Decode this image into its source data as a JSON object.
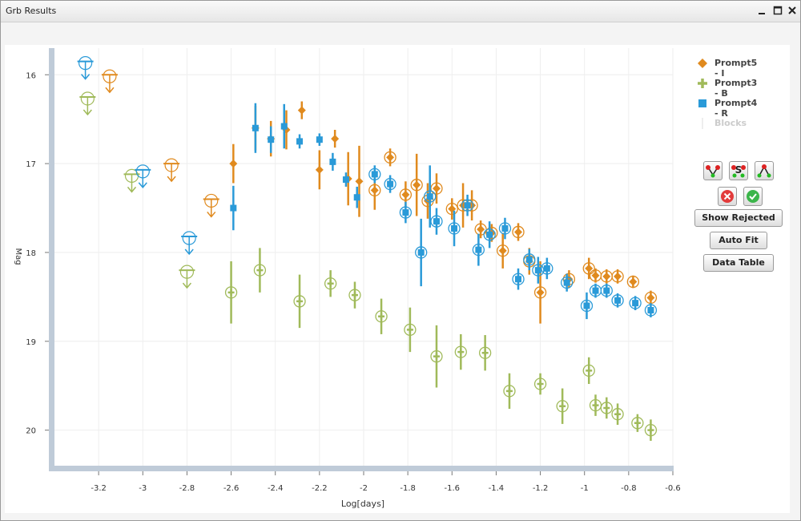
{
  "window": {
    "title": "Grb Results"
  },
  "legend": [
    {
      "label": "Prompt5 - I",
      "color": "#e08a1e",
      "marker": "diamond"
    },
    {
      "label": "Prompt3 - B",
      "color": "#a0ba5a",
      "marker": "plus"
    },
    {
      "label": "Prompt4 - R",
      "color": "#2a9ad8",
      "marker": "square"
    },
    {
      "label": "Blocks",
      "color": "#dddddd",
      "marker": "line",
      "disabled": true
    }
  ],
  "buttons": {
    "show_rejected": "Show Rejected",
    "auto_fit": "Auto Fit",
    "data_table": "Data Table"
  },
  "icons": [
    "tool-fit-icon",
    "tool-s-icon",
    "tool-peak-icon",
    "reject-icon",
    "accept-icon"
  ],
  "chart_data": {
    "type": "scatter",
    "xlabel": "Log[days]",
    "ylabel": "Mag",
    "xlim": [
      -3.4,
      -0.6
    ],
    "ylim": [
      20.4,
      15.7
    ],
    "y_inverted": true,
    "grid": true,
    "legend_position": "right",
    "x_ticks": [
      "-3.2",
      "-3",
      "-2.8",
      "-2.6",
      "-2.4",
      "-2.2",
      "-2",
      "-1.8",
      "-1.6",
      "-1.4",
      "-1.2",
      "-1",
      "-0.8",
      "-0.6"
    ],
    "y_ticks": [
      "16",
      "17",
      "18",
      "19",
      "20"
    ],
    "series": [
      {
        "name": "Prompt5 - I",
        "color": "#e08a1e",
        "marker": "diamond",
        "upper_limits": [
          [
            -3.15,
            16.0
          ],
          [
            -2.87,
            17.0
          ],
          [
            -2.69,
            17.4
          ]
        ],
        "points": [
          {
            "x": -2.59,
            "y": 17.0,
            "err": 0.22
          },
          {
            "x": -2.49,
            "y": 16.6,
            "err": 0.25
          },
          {
            "x": -2.42,
            "y": 16.72,
            "err": 0.2
          },
          {
            "x": -2.35,
            "y": 16.62,
            "err": 0.22
          },
          {
            "x": -2.28,
            "y": 16.4,
            "err": 0.1
          },
          {
            "x": -2.2,
            "y": 17.07,
            "err": 0.22
          },
          {
            "x": -2.13,
            "y": 16.72,
            "err": 0.1
          },
          {
            "x": -2.07,
            "y": 17.17,
            "err": 0.3
          },
          {
            "x": -2.02,
            "y": 17.2,
            "err": 0.4
          },
          {
            "x": -1.95,
            "y": 17.3,
            "err": 0.22,
            "c": true
          },
          {
            "x": -1.88,
            "y": 16.93,
            "err": 0.1,
            "c": true
          },
          {
            "x": -1.81,
            "y": 17.35,
            "err": 0.15,
            "c": true
          },
          {
            "x": -1.76,
            "y": 17.24,
            "err": 0.35,
            "c": true
          },
          {
            "x": -1.71,
            "y": 17.42,
            "err": 0.2,
            "c": true
          },
          {
            "x": -1.67,
            "y": 17.28,
            "err": 0.17,
            "c": true
          },
          {
            "x": -1.6,
            "y": 17.51,
            "err": 0.12,
            "c": true
          },
          {
            "x": -1.55,
            "y": 17.47,
            "err": 0.25,
            "c": true
          },
          {
            "x": -1.51,
            "y": 17.47,
            "err": 0.17,
            "c": true
          },
          {
            "x": -1.47,
            "y": 17.74,
            "err": 0.1,
            "c": true
          },
          {
            "x": -1.42,
            "y": 17.78,
            "err": 0.1,
            "c": true
          },
          {
            "x": -1.37,
            "y": 17.98,
            "err": 0.2,
            "c": true
          },
          {
            "x": -1.3,
            "y": 17.77,
            "err": 0.1,
            "c": true
          },
          {
            "x": -1.25,
            "y": 18.1,
            "err": 0.15,
            "c": true
          },
          {
            "x": -1.2,
            "y": 18.45,
            "err": 0.35,
            "c": true
          },
          {
            "x": -1.07,
            "y": 18.3,
            "err": 0.1,
            "c": true
          },
          {
            "x": -0.98,
            "y": 18.18,
            "err": 0.12,
            "c": true
          },
          {
            "x": -0.95,
            "y": 18.26,
            "err": 0.08,
            "c": true
          },
          {
            "x": -0.9,
            "y": 18.27,
            "err": 0.08,
            "c": true
          },
          {
            "x": -0.85,
            "y": 18.27,
            "err": 0.08,
            "c": true
          },
          {
            "x": -0.78,
            "y": 18.33,
            "err": 0.07,
            "c": true
          },
          {
            "x": -0.7,
            "y": 18.51,
            "err": 0.08,
            "c": true
          }
        ]
      },
      {
        "name": "Prompt3 - B",
        "color": "#a0ba5a",
        "marker": "plus",
        "upper_limits": [
          [
            -3.25,
            16.25
          ],
          [
            -3.05,
            17.12
          ],
          [
            -2.8,
            18.2
          ]
        ],
        "points": [
          {
            "x": -2.6,
            "y": 18.45,
            "err": 0.35,
            "c": true
          },
          {
            "x": -2.47,
            "y": 18.2,
            "err": 0.25,
            "c": true
          },
          {
            "x": -2.29,
            "y": 18.55,
            "err": 0.3,
            "c": true
          },
          {
            "x": -2.15,
            "y": 18.35,
            "err": 0.15,
            "c": true
          },
          {
            "x": -2.04,
            "y": 18.48,
            "err": 0.15,
            "c": true
          },
          {
            "x": -1.92,
            "y": 18.72,
            "err": 0.2,
            "c": true
          },
          {
            "x": -1.79,
            "y": 18.87,
            "err": 0.25,
            "c": true
          },
          {
            "x": -1.67,
            "y": 19.17,
            "err": 0.35,
            "c": true
          },
          {
            "x": -1.56,
            "y": 19.12,
            "err": 0.2,
            "c": true
          },
          {
            "x": -1.45,
            "y": 19.13,
            "err": 0.2,
            "c": true
          },
          {
            "x": -1.34,
            "y": 19.56,
            "err": 0.2,
            "c": true
          },
          {
            "x": -1.2,
            "y": 19.48,
            "err": 0.12,
            "c": true
          },
          {
            "x": -1.1,
            "y": 19.73,
            "err": 0.2,
            "c": true
          },
          {
            "x": -0.98,
            "y": 19.33,
            "err": 0.15,
            "c": true
          },
          {
            "x": -0.95,
            "y": 19.72,
            "err": 0.12,
            "c": true
          },
          {
            "x": -0.9,
            "y": 19.75,
            "err": 0.12,
            "c": true
          },
          {
            "x": -0.85,
            "y": 19.82,
            "err": 0.12,
            "c": true
          },
          {
            "x": -0.76,
            "y": 19.92,
            "err": 0.1,
            "c": true
          },
          {
            "x": -0.7,
            "y": 20.0,
            "err": 0.12,
            "c": true
          }
        ]
      },
      {
        "name": "Prompt4 - R",
        "color": "#2a9ad8",
        "marker": "square",
        "upper_limits": [
          [
            -3.26,
            15.85
          ],
          [
            -3.0,
            17.07
          ],
          [
            -2.79,
            17.82
          ]
        ],
        "points": [
          {
            "x": -2.59,
            "y": 17.5,
            "err": 0.25
          },
          {
            "x": -2.49,
            "y": 16.6,
            "err": 0.28
          },
          {
            "x": -2.42,
            "y": 16.73,
            "err": 0.15
          },
          {
            "x": -2.36,
            "y": 16.58,
            "err": 0.25
          },
          {
            "x": -2.29,
            "y": 16.75,
            "err": 0.08
          },
          {
            "x": -2.2,
            "y": 16.73,
            "err": 0.07
          },
          {
            "x": -2.14,
            "y": 16.98,
            "err": 0.1
          },
          {
            "x": -2.08,
            "y": 17.18,
            "err": 0.08
          },
          {
            "x": -2.03,
            "y": 17.38,
            "err": 0.12
          },
          {
            "x": -1.95,
            "y": 17.12,
            "err": 0.1,
            "c": true
          },
          {
            "x": -1.88,
            "y": 17.23,
            "err": 0.1,
            "c": true
          },
          {
            "x": -1.81,
            "y": 17.55,
            "err": 0.12,
            "c": true
          },
          {
            "x": -1.74,
            "y": 18.0,
            "err": 0.38,
            "c": true
          },
          {
            "x": -1.7,
            "y": 17.37,
            "err": 0.35,
            "c": true
          },
          {
            "x": -1.67,
            "y": 17.65,
            "err": 0.15,
            "c": true
          },
          {
            "x": -1.59,
            "y": 17.73,
            "err": 0.2,
            "c": true
          },
          {
            "x": -1.53,
            "y": 17.47,
            "err": 0.12,
            "c": true
          },
          {
            "x": -1.48,
            "y": 17.97,
            "err": 0.18,
            "c": true
          },
          {
            "x": -1.43,
            "y": 17.8,
            "err": 0.15,
            "c": true
          },
          {
            "x": -1.36,
            "y": 17.73,
            "err": 0.12,
            "c": true
          },
          {
            "x": -1.3,
            "y": 18.3,
            "err": 0.12,
            "c": true
          },
          {
            "x": -1.25,
            "y": 18.08,
            "err": 0.12,
            "c": true
          },
          {
            "x": -1.21,
            "y": 18.2,
            "err": 0.15,
            "c": true
          },
          {
            "x": -1.17,
            "y": 18.18,
            "err": 0.12,
            "c": true
          },
          {
            "x": -1.08,
            "y": 18.34,
            "err": 0.1,
            "c": true
          },
          {
            "x": -0.99,
            "y": 18.6,
            "err": 0.15,
            "c": true
          },
          {
            "x": -0.95,
            "y": 18.43,
            "err": 0.08,
            "c": true
          },
          {
            "x": -0.9,
            "y": 18.43,
            "err": 0.08,
            "c": true
          },
          {
            "x": -0.85,
            "y": 18.54,
            "err": 0.08,
            "c": true
          },
          {
            "x": -0.77,
            "y": 18.57,
            "err": 0.08,
            "c": true
          },
          {
            "x": -0.7,
            "y": 18.65,
            "err": 0.08,
            "c": true
          }
        ]
      }
    ]
  }
}
